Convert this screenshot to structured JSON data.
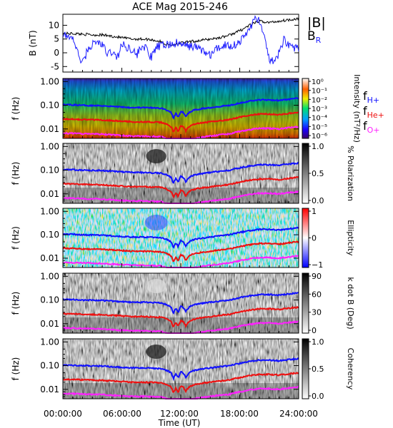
{
  "title": "ACE Mag 2015-246",
  "xlabel": "Time (UT)",
  "x_ticks": [
    "00:00:00",
    "06:00:00",
    "12:00:00",
    "18:00:00",
    "24:00:00"
  ],
  "colors": {
    "B_total": "#000000",
    "B_R": "#1f1fff",
    "f_H": "#1010ff",
    "f_He": "#ee1010",
    "f_O": "#ff20ff"
  },
  "chart_data": [
    {
      "type": "line",
      "ylabel": "B (nT)",
      "xlim": [
        0,
        24
      ],
      "ylim": [
        -7,
        14
      ],
      "y_ticks": [
        "10",
        "5",
        "0",
        "-5"
      ],
      "legend": [
        "|B|",
        "B_R"
      ],
      "legend_placement": "right",
      "series": [
        {
          "name": "|B|",
          "x": [
            0,
            1,
            2,
            3,
            4,
            5,
            6,
            7,
            8,
            9,
            10,
            10.5,
            11,
            11.5,
            12,
            12.5,
            13,
            14,
            15,
            16,
            17,
            18,
            19,
            20,
            21,
            22,
            23,
            24
          ],
          "values": [
            7,
            7,
            6.8,
            6.5,
            6.5,
            6,
            5.5,
            5,
            5,
            4.8,
            4,
            3,
            2.8,
            3.2,
            3.5,
            3.8,
            4,
            4.5,
            5,
            5.5,
            6.5,
            8,
            10,
            11.5,
            11,
            11.5,
            12,
            12.5
          ]
        },
        {
          "name": "B_R",
          "x": [
            0,
            0.5,
            1,
            1.5,
            2,
            2.5,
            3,
            3.5,
            4,
            4.5,
            5,
            5.5,
            6,
            6.5,
            7,
            7.5,
            8,
            8.5,
            9,
            9.5,
            10,
            10.5,
            11,
            11.5,
            12,
            12.5,
            13,
            13.5,
            14,
            14.5,
            15,
            15.5,
            16,
            16.5,
            17,
            17.5,
            18,
            18.5,
            19,
            19.5,
            20,
            20.5,
            21,
            21.5,
            22,
            22.5,
            23,
            23.5,
            24
          ],
          "values": [
            6,
            6,
            5.5,
            0,
            -4,
            1,
            3,
            4,
            3,
            -0.5,
            0.5,
            -2,
            3,
            2,
            1.5,
            -1,
            2.5,
            1.5,
            -2,
            2,
            2.5,
            3,
            3,
            3.5,
            3,
            2.5,
            2.5,
            2,
            1.5,
            0,
            -1,
            1,
            2,
            3,
            2.5,
            3,
            4,
            6,
            9,
            12,
            12,
            5,
            -2,
            -4,
            0,
            5,
            3,
            2,
            1
          ]
        }
      ]
    },
    {
      "type": "heatmap",
      "ylabel": "f (Hz)",
      "colorbar_label": "Intensity (nT²/Hz)",
      "colorbar_ticks": [
        "10⁰",
        "10⁻¹",
        "10⁻²",
        "10⁻³",
        "10⁻⁴",
        "10⁻⁵",
        "10⁻⁶"
      ],
      "legend": [
        "f_H+",
        "f_He+",
        "f_O+"
      ]
    },
    {
      "type": "heatmap",
      "ylabel": "f (Hz)",
      "colorbar_label": "% Polarization",
      "colorbar_ticks": [
        "1.0",
        "0.5",
        "0.0"
      ]
    },
    {
      "type": "heatmap",
      "ylabel": "f (Hz)",
      "colorbar_label": "Ellipticity",
      "colorbar_ticks": [
        "1",
        "0",
        "−1"
      ]
    },
    {
      "type": "heatmap",
      "ylabel": "f (Hz)",
      "colorbar_label": "k dot B (Deg)",
      "colorbar_ticks": [
        "90",
        "60",
        "30",
        "0"
      ]
    },
    {
      "type": "heatmap",
      "ylabel": "f (Hz)",
      "colorbar_label": "Coherency",
      "colorbar_ticks": [
        "1.0",
        "0.5",
        "0.0"
      ]
    }
  ],
  "freq_ticks": [
    "1.00",
    "0.10",
    "0.01"
  ],
  "gyrofrequency_lines": {
    "x": [
      0,
      1,
      2,
      3,
      4,
      5,
      6,
      7,
      8,
      9,
      10,
      10.5,
      11,
      11.25,
      11.5,
      11.75,
      12,
      12.25,
      12.5,
      12.75,
      13,
      13.25,
      13.5,
      14,
      15,
      16,
      17,
      18,
      19,
      20,
      21,
      22,
      23,
      24
    ],
    "f_H": [
      0.105,
      0.105,
      0.1,
      0.098,
      0.096,
      0.09,
      0.085,
      0.08,
      0.08,
      0.078,
      0.075,
      0.065,
      0.05,
      0.028,
      0.045,
      0.03,
      0.055,
      0.05,
      0.032,
      0.045,
      0.055,
      0.06,
      0.065,
      0.07,
      0.08,
      0.09,
      0.1,
      0.125,
      0.15,
      0.17,
      0.17,
      0.16,
      0.18,
      0.2
    ]
  }
}
